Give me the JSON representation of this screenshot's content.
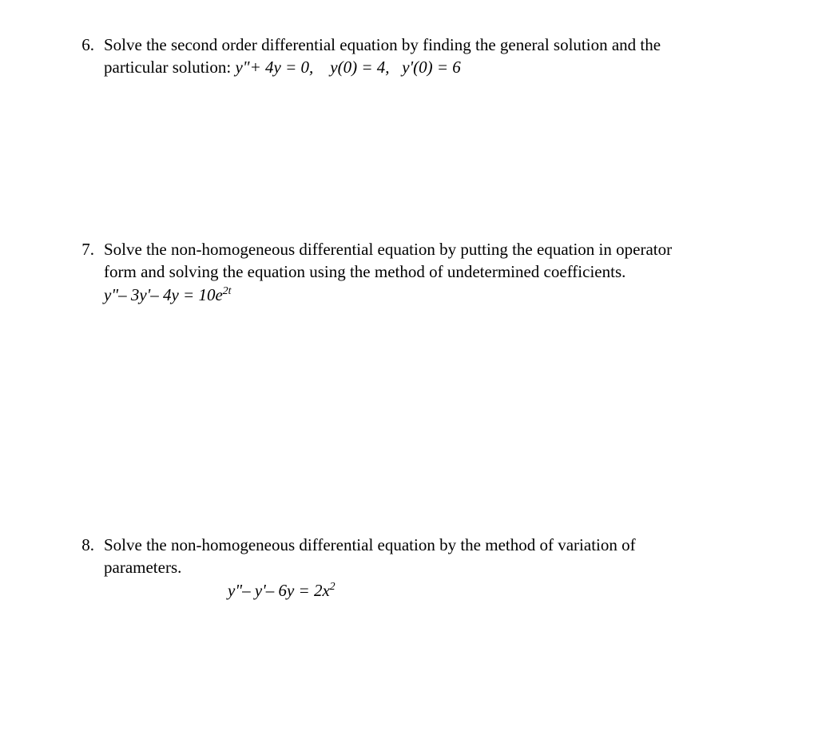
{
  "background_color": "#ffffff",
  "text_color": "#000000",
  "font_family": "Times New Roman",
  "font_size_pt": 16,
  "problems": {
    "p6": {
      "number": "6.",
      "text_1": "Solve the second order differential equation by finding the general solution and the",
      "text_2a": "particular solution:  ",
      "eq_main": "y\"+ 4y = 0,",
      "eq_ic1": "y(0) = 4,",
      "eq_ic2": "y'(0) = 6"
    },
    "p7": {
      "number": "7.",
      "text_1": "Solve the non-homogeneous differential equation by putting the equation in operator",
      "text_2": "form and solving the equation using the method of undetermined coefficients.",
      "eq_lhs": "y\"– 3y'– 4y = 10e",
      "eq_exp": "2t"
    },
    "p8": {
      "number": "8.",
      "text_1": "Solve the non-homogeneous differential equation by the method of variation of",
      "text_2": "parameters.",
      "eq_lhs": "y\"– y'– 6y = 2x",
      "eq_exp": "2"
    }
  }
}
